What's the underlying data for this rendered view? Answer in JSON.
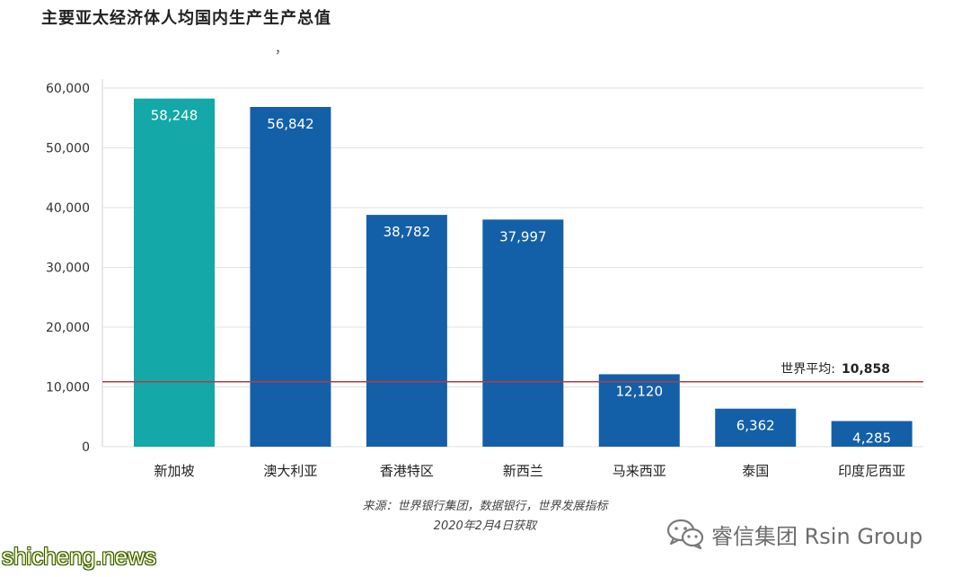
{
  "chart_data": {
    "type": "bar",
    "title": "主要亚太经济体人均国内生产生产总值",
    "title_note": "，",
    "categories": [
      "新加坡",
      "澳大利亚",
      "香港特区",
      "新西兰",
      "马来西亚",
      "泰国",
      "印度尼西亚"
    ],
    "values": [
      58248,
      56842,
      38782,
      37997,
      12120,
      6362,
      4285
    ],
    "value_labels": [
      "58,248",
      "56,842",
      "38,782",
      "37,997",
      "12,120",
      "6,362",
      "4,285"
    ],
    "highlight_index": 0,
    "colors": {
      "highlight": "#14a8a8",
      "default": "#1460a8",
      "reference_line": "#b83a3a",
      "grid": "#e2e2e2"
    },
    "ylim": [
      0,
      60000
    ],
    "yticks": [
      0,
      10000,
      20000,
      30000,
      40000,
      50000,
      60000
    ],
    "ytick_labels": [
      "0",
      "10,000",
      "20,000",
      "30,000",
      "40,000",
      "50,000",
      "60,000"
    ],
    "grid": true,
    "reference_line": {
      "value": 10858,
      "label": "世界平均:",
      "value_label": "10,858"
    }
  },
  "source_lines": [
    "来源：世界银行集团，数据银行，世界发展指标",
    "2020年2月4日获取"
  ],
  "branding": {
    "wechat_icon": "wechat-icon",
    "account_name": "睿信集团 Rsin Group"
  },
  "watermark": "shicheng.news"
}
